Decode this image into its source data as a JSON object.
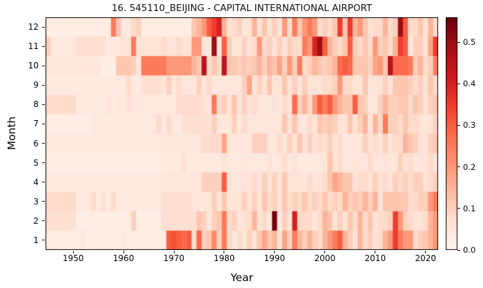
{
  "colors": {
    "background": "#ffffff",
    "text": "#000000",
    "spine": "#000000",
    "colormap_low": "#fff5f0",
    "colormap_high": "#67000d"
  },
  "chart_data": {
    "type": "heatmap",
    "title": "16. 545110_BEIJING - CAPITAL INTERNATIONAL AIRPORT",
    "xlabel": "Year",
    "ylabel": "Month",
    "colormap": "Reds",
    "vmin": 0.0,
    "vmax": 0.56,
    "x_start": 1945,
    "x_end": 2022,
    "x_ticks": [
      1950,
      1960,
      1970,
      1980,
      1990,
      2000,
      2010,
      2020
    ],
    "y_categories": [
      1,
      2,
      3,
      4,
      5,
      6,
      7,
      8,
      9,
      10,
      11,
      12
    ],
    "colorbar_tick_values": [
      0.0,
      0.1,
      0.2,
      0.3,
      0.4,
      0.5
    ],
    "colorbar_tick_labels": [
      "0.0",
      "0.1",
      "0.2",
      "0.3",
      "0.4",
      "0.5"
    ],
    "legend": "colorbar-right",
    "grid": false,
    "values_rows_are_months_1_to_12": true,
    "values": [
      [
        0.03,
        0.03,
        0.03,
        0.03,
        0.03,
        0.03,
        0.03,
        0.05,
        0.03,
        0.03,
        0.03,
        0.03,
        0.03,
        0.03,
        0.03,
        0.04,
        0.03,
        0.03,
        0.03,
        0.03,
        0.03,
        0.03,
        0.03,
        0.03,
        0.3,
        0.32,
        0.3,
        0.28,
        0.3,
        0.08,
        0.28,
        0.1,
        0.12,
        0.22,
        0.1,
        0.25,
        0.08,
        0.05,
        0.08,
        0.05,
        0.1,
        0.06,
        0.12,
        0.18,
        0.12,
        0.15,
        0.06,
        0.18,
        0.1,
        0.25,
        0.15,
        0.1,
        0.15,
        0.1,
        0.08,
        0.15,
        0.2,
        0.25,
        0.3,
        0.15,
        0.1,
        0.06,
        0.15,
        0.08,
        0.1,
        0.06,
        0.08,
        0.15,
        0.2,
        0.35,
        0.25,
        0.2,
        0.2,
        0.08,
        0.1,
        0.12,
        0.15,
        0.2
      ],
      [
        0.07,
        0.07,
        0.07,
        0.07,
        0.07,
        0.07,
        0.03,
        0.03,
        0.03,
        0.03,
        0.03,
        0.03,
        0.03,
        0.03,
        0.03,
        0.03,
        0.03,
        0.1,
        0.03,
        0.03,
        0.03,
        0.03,
        0.03,
        0.07,
        0.07,
        0.07,
        0.07,
        0.07,
        0.07,
        0.07,
        0.12,
        0.1,
        0.05,
        0.1,
        0.12,
        0.25,
        0.08,
        0.1,
        0.05,
        0.06,
        0.08,
        0.15,
        0.06,
        0.08,
        0.05,
        0.55,
        0.04,
        0.1,
        0.06,
        0.4,
        0.08,
        0.08,
        0.08,
        0.05,
        0.08,
        0.15,
        0.12,
        0.06,
        0.1,
        0.06,
        0.12,
        0.08,
        0.15,
        0.08,
        0.12,
        0.06,
        0.08,
        0.08,
        0.1,
        0.35,
        0.2,
        0.1,
        0.08,
        0.06,
        0.06,
        0.08,
        0.15,
        0.2
      ],
      [
        0.08,
        0.08,
        0.08,
        0.08,
        0.08,
        0.08,
        0.04,
        0.04,
        0.04,
        0.08,
        0.04,
        0.07,
        0.04,
        0.08,
        0.04,
        0.04,
        0.04,
        0.04,
        0.04,
        0.04,
        0.04,
        0.04,
        0.04,
        0.07,
        0.07,
        0.07,
        0.07,
        0.07,
        0.07,
        0.05,
        0.05,
        0.05,
        0.05,
        0.1,
        0.06,
        0.12,
        0.06,
        0.06,
        0.06,
        0.1,
        0.06,
        0.1,
        0.06,
        0.12,
        0.08,
        0.1,
        0.06,
        0.12,
        0.08,
        0.1,
        0.08,
        0.12,
        0.08,
        0.1,
        0.08,
        0.12,
        0.08,
        0.1,
        0.08,
        0.15,
        0.1,
        0.12,
        0.1,
        0.15,
        0.1,
        0.15,
        0.06,
        0.12,
        0.12,
        0.12,
        0.12,
        0.12,
        0.08,
        0.08,
        0.1,
        0.1,
        0.2,
        0.25
      ],
      [
        0.04,
        0.04,
        0.04,
        0.04,
        0.04,
        0.04,
        0.04,
        0.04,
        0.04,
        0.04,
        0.04,
        0.04,
        0.04,
        0.04,
        0.04,
        0.04,
        0.04,
        0.04,
        0.04,
        0.04,
        0.04,
        0.04,
        0.04,
        0.05,
        0.05,
        0.05,
        0.05,
        0.05,
        0.05,
        0.05,
        0.05,
        0.1,
        0.1,
        0.1,
        0.1,
        0.3,
        0.06,
        0.05,
        0.05,
        0.06,
        0.05,
        0.08,
        0.05,
        0.1,
        0.06,
        0.1,
        0.06,
        0.12,
        0.06,
        0.06,
        0.06,
        0.05,
        0.08,
        0.05,
        0.06,
        0.08,
        0.12,
        0.18,
        0.15,
        0.12,
        0.12,
        0.06,
        0.08,
        0.08,
        0.06,
        0.1,
        0.06,
        0.08,
        0.06,
        0.1,
        0.08,
        0.1,
        0.08,
        0.1,
        0.1,
        0.06,
        0.08,
        0.1
      ],
      [
        0.03,
        0.03,
        0.03,
        0.03,
        0.03,
        0.03,
        0.03,
        0.03,
        0.03,
        0.03,
        0.03,
        0.03,
        0.03,
        0.03,
        0.03,
        0.03,
        0.03,
        0.03,
        0.03,
        0.03,
        0.03,
        0.03,
        0.03,
        0.04,
        0.04,
        0.04,
        0.04,
        0.07,
        0.04,
        0.04,
        0.04,
        0.04,
        0.04,
        0.04,
        0.04,
        0.06,
        0.04,
        0.04,
        0.04,
        0.05,
        0.04,
        0.04,
        0.04,
        0.04,
        0.06,
        0.04,
        0.05,
        0.08,
        0.04,
        0.06,
        0.04,
        0.04,
        0.04,
        0.04,
        0.04,
        0.05,
        0.12,
        0.06,
        0.08,
        0.05,
        0.05,
        0.06,
        0.05,
        0.05,
        0.08,
        0.05,
        0.05,
        0.06,
        0.05,
        0.05,
        0.1,
        0.06,
        0.08,
        0.05,
        0.06,
        0.05,
        0.08,
        0.06
      ],
      [
        0.04,
        0.04,
        0.04,
        0.04,
        0.04,
        0.04,
        0.04,
        0.04,
        0.04,
        0.04,
        0.04,
        0.04,
        0.04,
        0.04,
        0.04,
        0.04,
        0.04,
        0.04,
        0.04,
        0.04,
        0.04,
        0.04,
        0.04,
        0.05,
        0.05,
        0.05,
        0.05,
        0.05,
        0.05,
        0.05,
        0.05,
        0.08,
        0.08,
        0.08,
        0.08,
        0.18,
        0.05,
        0.05,
        0.05,
        0.05,
        0.05,
        0.1,
        0.1,
        0.1,
        0.05,
        0.05,
        0.08,
        0.05,
        0.1,
        0.06,
        0.12,
        0.06,
        0.1,
        0.06,
        0.08,
        0.06,
        0.1,
        0.06,
        0.08,
        0.05,
        0.05,
        0.05,
        0.05,
        0.1,
        0.06,
        0.08,
        0.06,
        0.1,
        0.06,
        0.08,
        0.08,
        0.15,
        0.12,
        0.1,
        0.06,
        0.06,
        0.1,
        0.12
      ],
      [
        0.03,
        0.03,
        0.03,
        0.03,
        0.03,
        0.03,
        0.03,
        0.03,
        0.03,
        0.04,
        0.04,
        0.04,
        0.04,
        0.04,
        0.04,
        0.04,
        0.04,
        0.04,
        0.04,
        0.04,
        0.04,
        0.04,
        0.08,
        0.04,
        0.08,
        0.04,
        0.04,
        0.07,
        0.07,
        0.07,
        0.07,
        0.07,
        0.07,
        0.1,
        0.05,
        0.05,
        0.05,
        0.1,
        0.05,
        0.08,
        0.05,
        0.05,
        0.05,
        0.05,
        0.05,
        0.05,
        0.05,
        0.12,
        0.06,
        0.12,
        0.06,
        0.05,
        0.08,
        0.06,
        0.12,
        0.1,
        0.12,
        0.1,
        0.06,
        0.06,
        0.12,
        0.06,
        0.1,
        0.15,
        0.06,
        0.15,
        0.08,
        0.25,
        0.1,
        0.1,
        0.08,
        0.12,
        0.08,
        0.08,
        0.06,
        0.05,
        0.06,
        0.1
      ],
      [
        0.08,
        0.08,
        0.08,
        0.08,
        0.08,
        0.08,
        0.04,
        0.04,
        0.04,
        0.04,
        0.04,
        0.04,
        0.06,
        0.04,
        0.05,
        0.04,
        0.06,
        0.04,
        0.05,
        0.04,
        0.04,
        0.04,
        0.04,
        0.04,
        0.04,
        0.04,
        0.08,
        0.08,
        0.08,
        0.08,
        0.08,
        0.06,
        0.06,
        0.25,
        0.08,
        0.1,
        0.06,
        0.12,
        0.06,
        0.1,
        0.06,
        0.08,
        0.05,
        0.05,
        0.05,
        0.06,
        0.05,
        0.08,
        0.06,
        0.28,
        0.1,
        0.15,
        0.08,
        0.2,
        0.3,
        0.25,
        0.3,
        0.2,
        0.15,
        0.12,
        0.12,
        0.3,
        0.12,
        0.1,
        0.05,
        0.05,
        0.1,
        0.15,
        0.1,
        0.1,
        0.12,
        0.12,
        0.08,
        0.12,
        0.1,
        0.06,
        0.1,
        0.12
      ],
      [
        0.04,
        0.04,
        0.04,
        0.04,
        0.04,
        0.04,
        0.04,
        0.04,
        0.04,
        0.04,
        0.04,
        0.04,
        0.04,
        0.04,
        0.04,
        0.04,
        0.08,
        0.04,
        0.04,
        0.07,
        0.07,
        0.07,
        0.07,
        0.05,
        0.1,
        0.05,
        0.08,
        0.05,
        0.05,
        0.05,
        0.1,
        0.05,
        0.08,
        0.05,
        0.05,
        0.05,
        0.05,
        0.05,
        0.05,
        0.1,
        0.18,
        0.06,
        0.1,
        0.06,
        0.12,
        0.06,
        0.06,
        0.12,
        0.06,
        0.1,
        0.06,
        0.1,
        0.06,
        0.06,
        0.06,
        0.08,
        0.08,
        0.1,
        0.2,
        0.08,
        0.08,
        0.06,
        0.06,
        0.12,
        0.06,
        0.06,
        0.06,
        0.1,
        0.06,
        0.12,
        0.12,
        0.12,
        0.1,
        0.08,
        0.1,
        0.06,
        0.12,
        0.08
      ],
      [
        0.05,
        0.05,
        0.05,
        0.05,
        0.05,
        0.05,
        0.05,
        0.05,
        0.05,
        0.05,
        0.05,
        0.03,
        0.03,
        0.03,
        0.12,
        0.12,
        0.12,
        0.1,
        0.05,
        0.25,
        0.25,
        0.25,
        0.25,
        0.25,
        0.2,
        0.2,
        0.2,
        0.2,
        0.2,
        0.15,
        0.12,
        0.45,
        0.08,
        0.12,
        0.08,
        0.45,
        0.12,
        0.12,
        0.1,
        0.12,
        0.1,
        0.12,
        0.15,
        0.1,
        0.15,
        0.12,
        0.18,
        0.1,
        0.2,
        0.1,
        0.25,
        0.08,
        0.1,
        0.15,
        0.12,
        0.1,
        0.12,
        0.15,
        0.28,
        0.3,
        0.28,
        0.12,
        0.12,
        0.12,
        0.1,
        0.18,
        0.2,
        0.12,
        0.45,
        0.28,
        0.28,
        0.28,
        0.25,
        0.1,
        0.15,
        0.08,
        0.1,
        0.25
      ],
      [
        0.1,
        0.04,
        0.04,
        0.04,
        0.04,
        0.04,
        0.07,
        0.07,
        0.07,
        0.07,
        0.07,
        0.07,
        0.04,
        0.04,
        0.04,
        0.06,
        0.06,
        0.25,
        0.06,
        0.06,
        0.06,
        0.06,
        0.06,
        0.08,
        0.06,
        0.06,
        0.08,
        0.06,
        0.06,
        0.2,
        0.2,
        0.05,
        0.05,
        0.5,
        0.05,
        0.3,
        0.1,
        0.06,
        0.06,
        0.1,
        0.06,
        0.08,
        0.2,
        0.08,
        0.1,
        0.06,
        0.1,
        0.06,
        0.1,
        0.08,
        0.08,
        0.25,
        0.2,
        0.4,
        0.5,
        0.3,
        0.15,
        0.1,
        0.08,
        0.12,
        0.3,
        0.1,
        0.08,
        0.12,
        0.08,
        0.2,
        0.1,
        0.12,
        0.08,
        0.15,
        0.35,
        0.3,
        0.05,
        0.1,
        0.1,
        0.06,
        0.18,
        0.35
      ],
      [
        0.03,
        0.03,
        0.03,
        0.03,
        0.03,
        0.03,
        0.03,
        0.03,
        0.03,
        0.03,
        0.03,
        0.03,
        0.03,
        0.25,
        0.12,
        0.04,
        0.04,
        0.08,
        0.1,
        0.03,
        0.03,
        0.03,
        0.03,
        0.03,
        0.03,
        0.03,
        0.03,
        0.03,
        0.03,
        0.12,
        0.15,
        0.2,
        0.3,
        0.35,
        0.4,
        0.15,
        0.06,
        0.08,
        0.1,
        0.05,
        0.06,
        0.15,
        0.06,
        0.12,
        0.06,
        0.1,
        0.06,
        0.2,
        0.08,
        0.25,
        0.12,
        0.2,
        0.25,
        0.2,
        0.08,
        0.1,
        0.08,
        0.12,
        0.35,
        0.12,
        0.35,
        0.15,
        0.2,
        0.12,
        0.06,
        0.08,
        0.08,
        0.15,
        0.08,
        0.1,
        0.5,
        0.3,
        0.08,
        0.08,
        0.12,
        0.06,
        0.15,
        0.08
      ]
    ]
  }
}
